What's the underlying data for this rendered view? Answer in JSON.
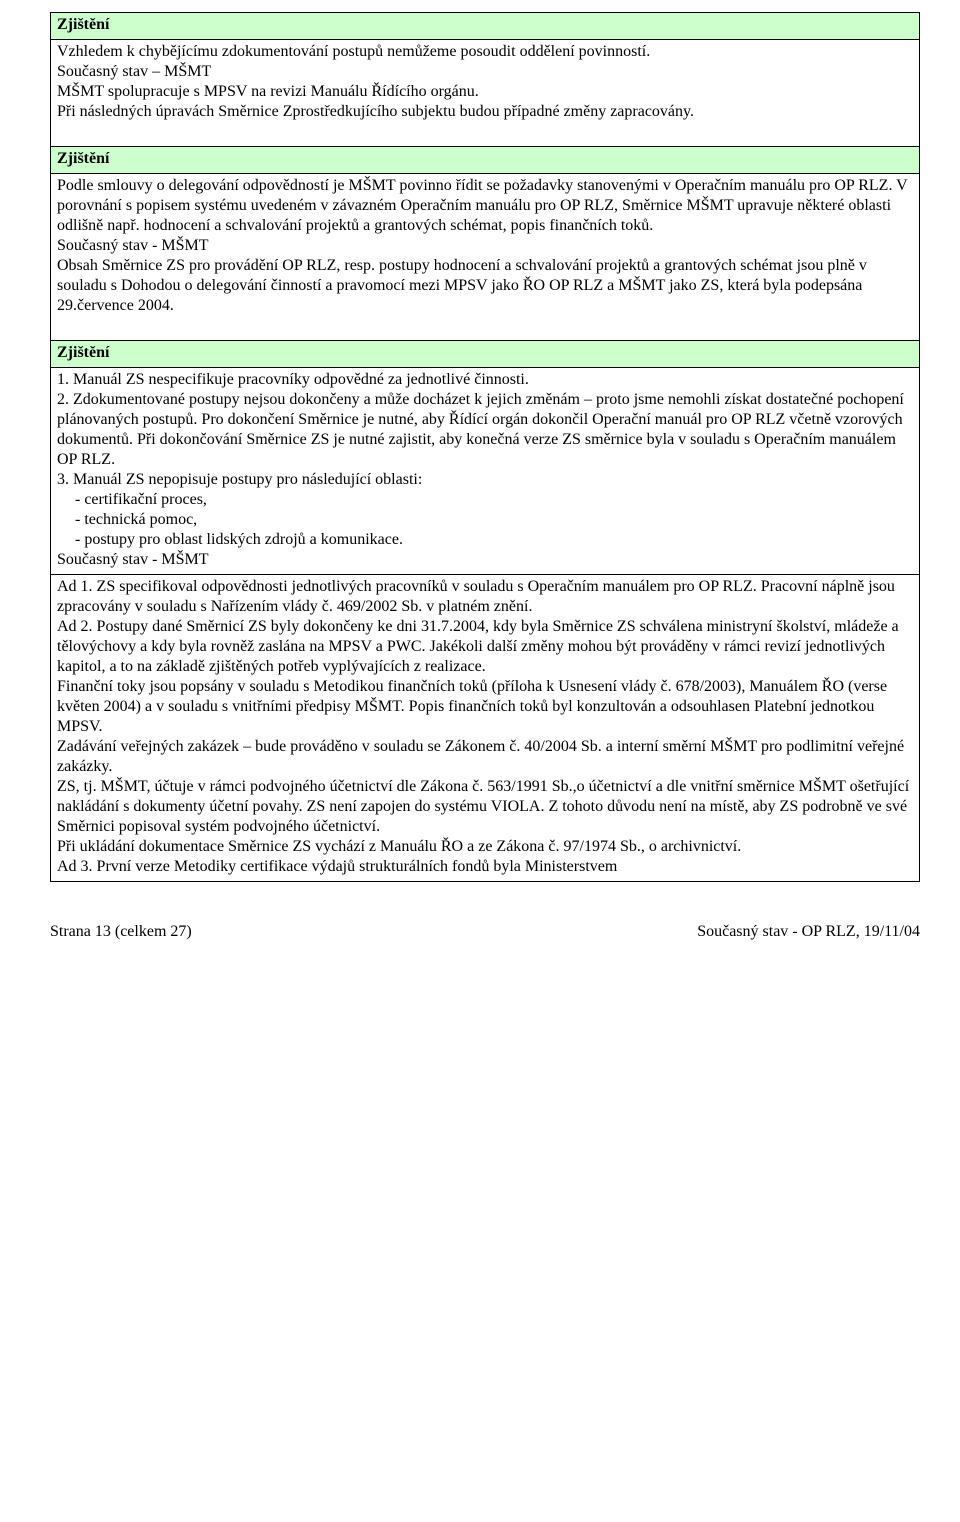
{
  "colors": {
    "heading_bg": "#ccffcc",
    "border": "#000000",
    "text": "#000000",
    "page_bg": "#ffffff"
  },
  "typography": {
    "family": "Times New Roman",
    "body_size_pt": 12,
    "heading_weight": "bold"
  },
  "labels": {
    "zjisteni": "Zjištění",
    "soucasny_stav_dash": "Současný stav – MŠMT",
    "soucasny_stav_hyphen": "Současný stav - MŠMT"
  },
  "section1": {
    "body1": "Vzhledem k chybějícímu zdokumentování postupů nemůžeme posoudit oddělení povinností.",
    "body2": "MŠMT spolupracuje s MPSV na revizi Manuálu Řídícího orgánu.",
    "body3": "Při následných úpravách Směrnice Zprostředkujícího subjektu budou případné změny zapracovány."
  },
  "section2": {
    "finding": "Podle smlouvy o delegování odpovědností je MŠMT povinno řídit se požadavky stanovenými v Operačním manuálu pro OP RLZ. V porovnání s popisem systému uvedeném v závazném Operačním manuálu pro OP RLZ, Směrnice MŠMT upravuje některé oblasti odlišně např. hodnocení a schvalování projektů a grantových schémat, popis finančních toků.",
    "status": "Obsah Směrnice ZS pro provádění OP RLZ, resp.  postupy hodnocení a schvalování projektů a grantových schémat jsou plně v souladu s Dohodou o delegování činností a pravomocí mezi MPSV jako ŘO OP RLZ a MŠMT jako ZS, která byla podepsána 29.července 2004."
  },
  "section3": {
    "p1": "1. Manuál ZS nespecifikuje pracovníky odpovědné za jednotlivé činnosti.",
    "p2": "2. Zdokumentované postupy nejsou dokončeny a může docházet k jejich změnám – proto jsme nemohli získat dostatečné pochopení plánovaných postupů. Pro dokončení Směrnice je nutné, aby Řídící orgán dokončil Operační manuál pro OP RLZ včetně vzorových dokumentů. Při dokončování Směrnice ZS je nutné zajistit, aby konečná verze ZS směrnice byla v souladu s Operačním manuálem OP RLZ.",
    "p3_intro": "3. Manuál ZS nepopisuje postupy pro následující oblasti:",
    "p3_items": {
      "a": "certifikační proces,",
      "b": "technická pomoc,",
      "c": "postupy pro oblast lidských zdrojů a komunikace."
    },
    "status_p1": "Ad 1. ZS specifikoval odpovědnosti jednotlivých pracovníků v souladu s Operačním manuálem pro OP RLZ. Pracovní náplně jsou zpracovány v souladu s Nařízením vlády č. 469/2002 Sb. v platném znění.",
    "status_p2": "Ad 2. Postupy dané Směrnicí ZS byly dokončeny ke dni 31.7.2004, kdy byla Směrnice ZS schválena ministryní školství, mládeže a tělovýchovy a kdy byla rovněž zaslána na MPSV a PWC. Jakékoli další změny mohou být prováděny v rámci revizí jednotlivých kapitol, a to na základě zjištěných potřeb vyplývajících z realizace.",
    "status_p3": "Finanční toky jsou popsány v souladu s Metodikou finančních toků (příloha k Usnesení vlády č. 678/2003), Manuálem ŘO (verse květen 2004) a v souladu s vnitřními předpisy MŠMT. Popis finančních toků byl konzultován a odsouhlasen Platební jednotkou MPSV.",
    "status_p4": "Zadávání veřejných zakázek – bude prováděno v souladu se Zákonem č. 40/2004 Sb. a interní směrní MŠMT pro podlimitní veřejné zakázky.",
    "status_p5": "ZS, tj. MŠMT,  účtuje v rámci podvojného účetnictví dle Zákona č. 563/1991 Sb.,o účetnictví a dle vnitřní směrnice MŠMT ošetřující nakládání s dokumenty účetní povahy.  ZS není zapojen do systému VIOLA. Z tohoto důvodu není na místě, aby ZS podrobně ve své Směrnici popisoval systém podvojného účetnictví.",
    "status_p6": "Při ukládání dokumentace Směrnice ZS vychází z Manuálu ŘO a ze Zákona  č. 97/1974 Sb., o archivnictví.",
    "status_p7": "Ad 3. První verze Metodiky certifikace výdajů strukturálních fondů byla Ministerstvem"
  },
  "footer": {
    "left": "Strana 13 (celkem 27)",
    "right": "Současný stav - OP RLZ, 19/11/04"
  }
}
